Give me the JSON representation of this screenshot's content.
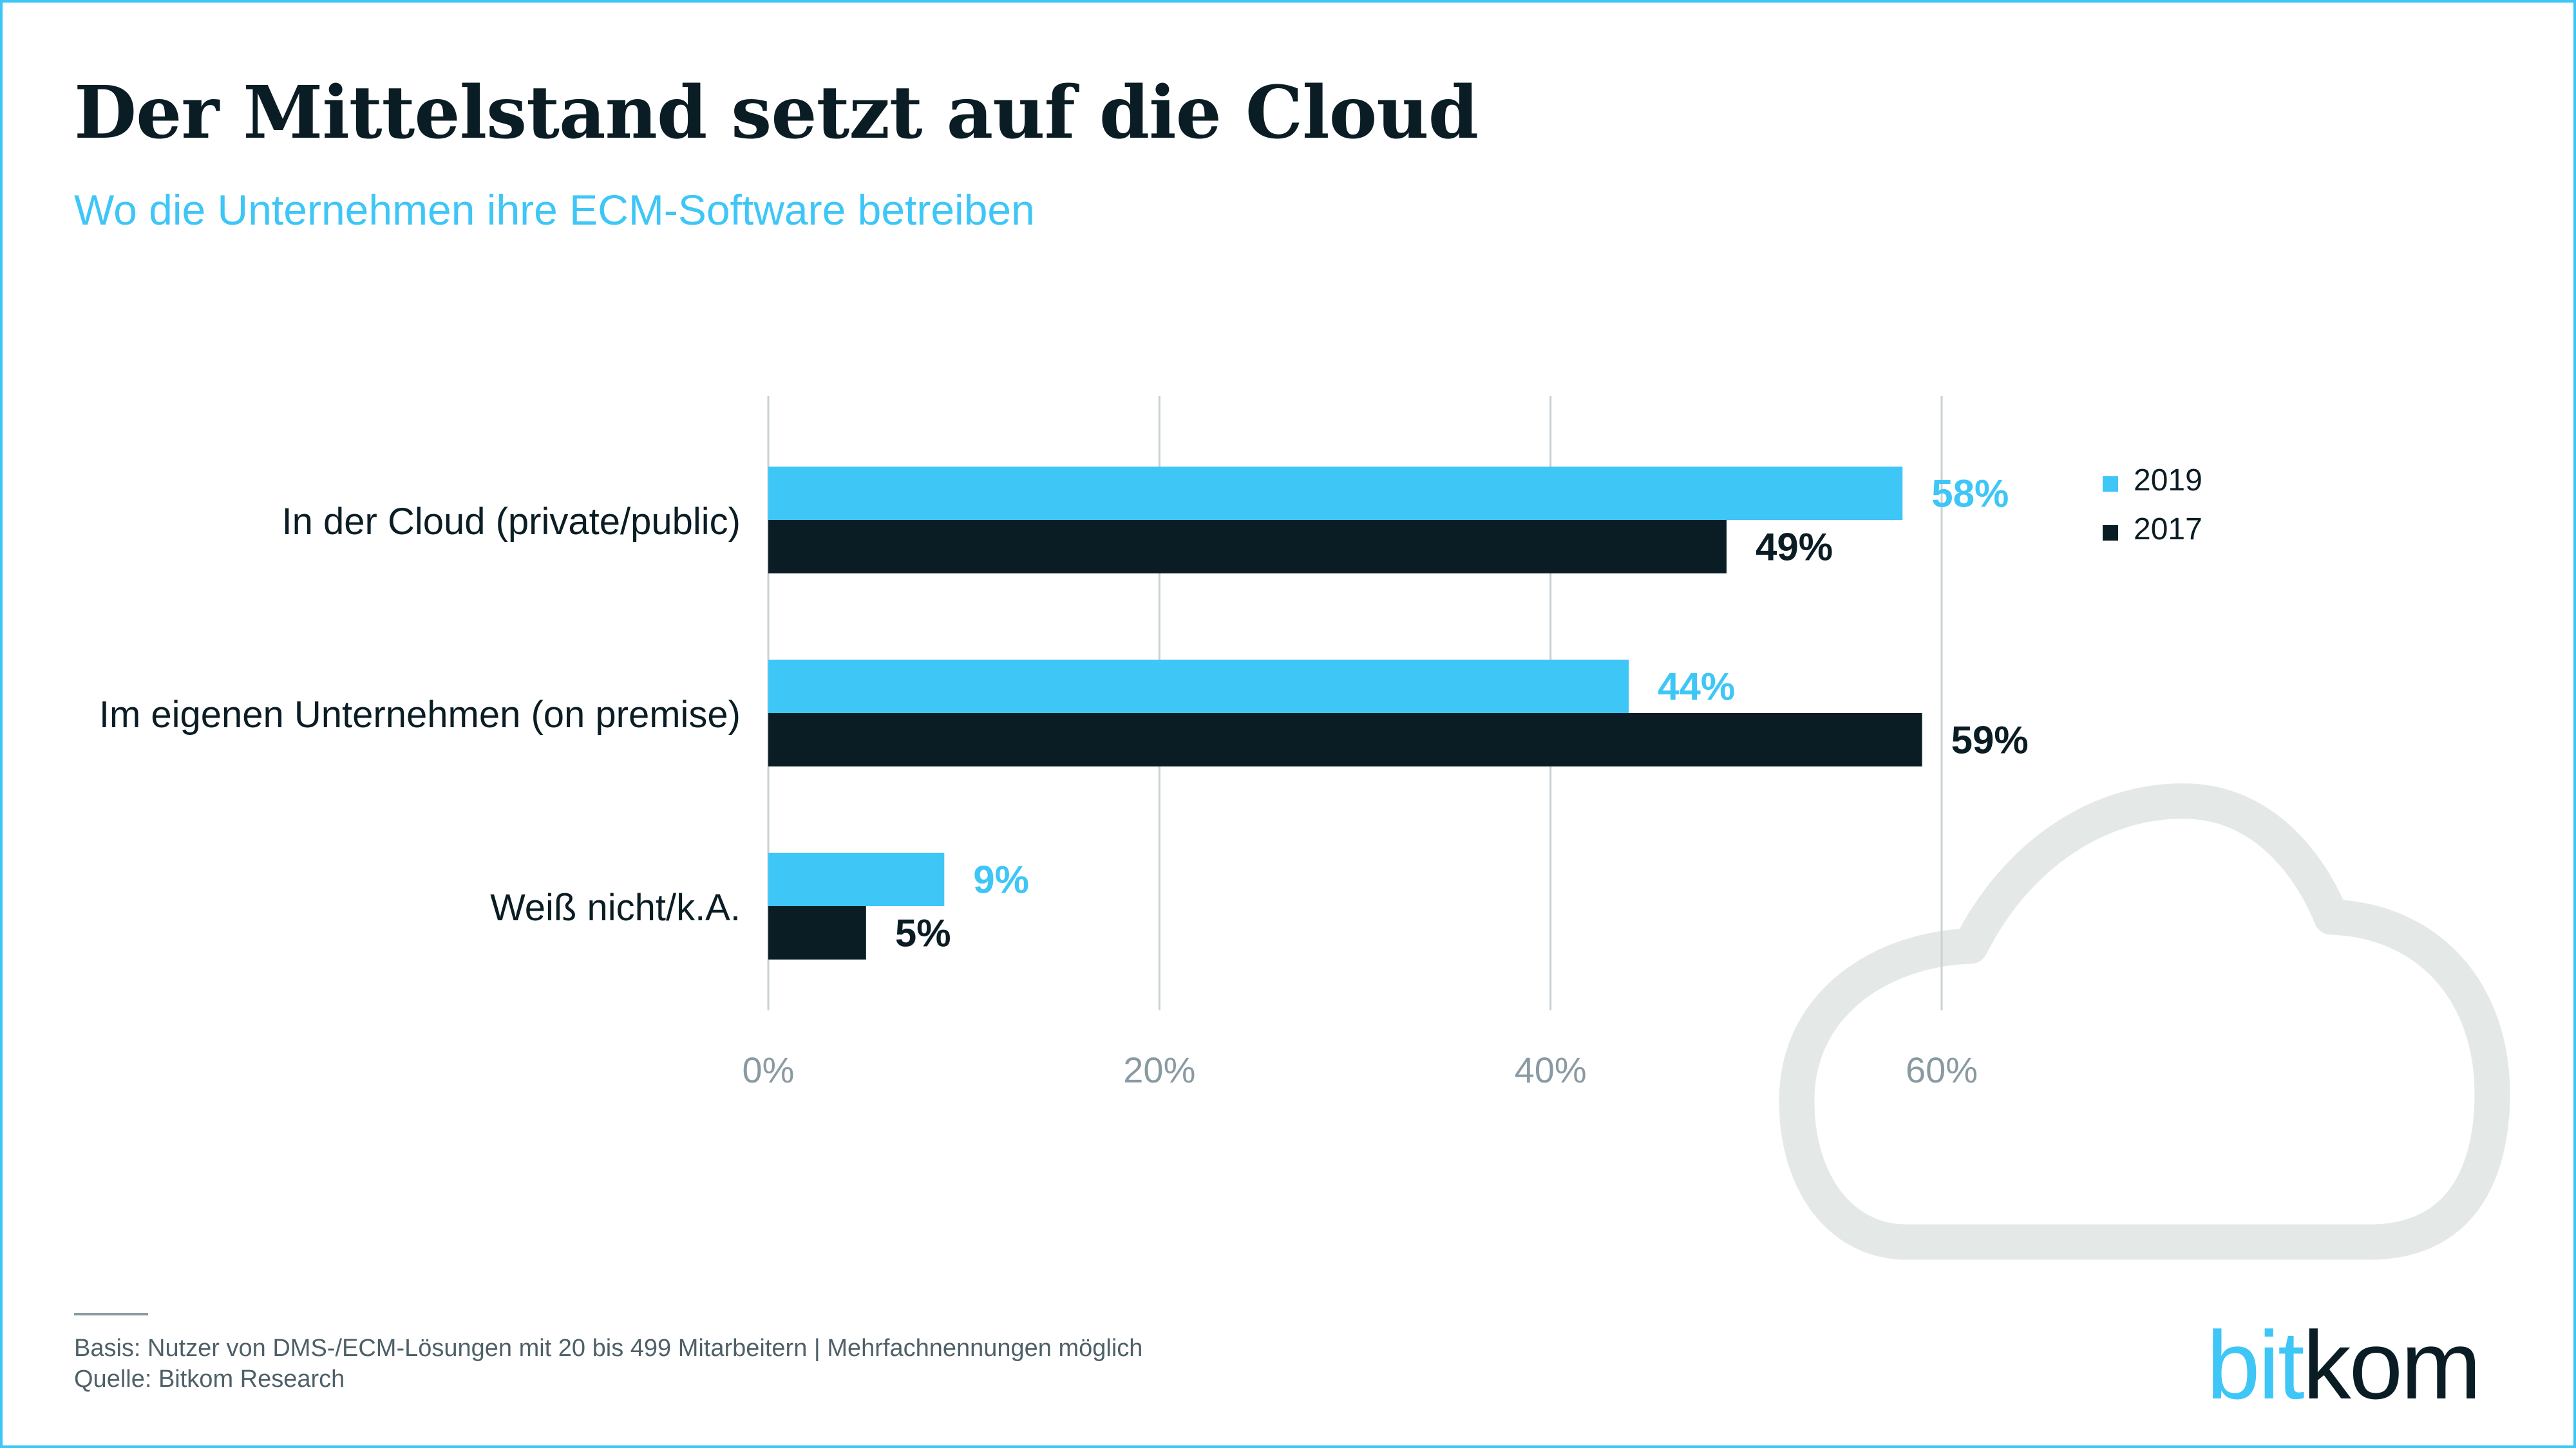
{
  "header": {
    "title": "Der Mittelstand setzt auf die Cloud",
    "subtitle": "Wo die Unternehmen ihre ECM-Software betreiben"
  },
  "colors": {
    "series_2019": "#3ec6f7",
    "series_2017": "#0b1d24",
    "frame": "#3ec6f7",
    "cloud": "#e4e9e8"
  },
  "icons": {
    "background": "cloud-icon"
  },
  "chart_data": {
    "type": "bar",
    "orientation": "horizontal",
    "categories": [
      "In der Cloud (private/public)",
      "Im eigenen Unternehmen (on premise)",
      "Weiß nicht/k.A."
    ],
    "series": [
      {
        "name": "2019",
        "values": [
          58,
          44,
          9
        ],
        "labels": [
          "58%",
          "44%",
          "9%"
        ]
      },
      {
        "name": "2017",
        "values": [
          49,
          59,
          5
        ],
        "labels": [
          "49%",
          "59%",
          "5%"
        ]
      }
    ],
    "xlim": [
      0,
      60
    ],
    "xticks": [
      0,
      20,
      40,
      60
    ],
    "xtick_labels": [
      "0%",
      "20%",
      "40%",
      "60%"
    ],
    "grid": true,
    "legend": "top-right"
  },
  "footer": {
    "basis": "Basis: Nutzer von DMS-/ECM-Lösungen mit 20 bis 499 Mitarbeitern | Mehrfachnennungen möglich",
    "source": "Quelle: Bitkom Research"
  },
  "logo": {
    "part1": "bit",
    "part2": "kom"
  }
}
